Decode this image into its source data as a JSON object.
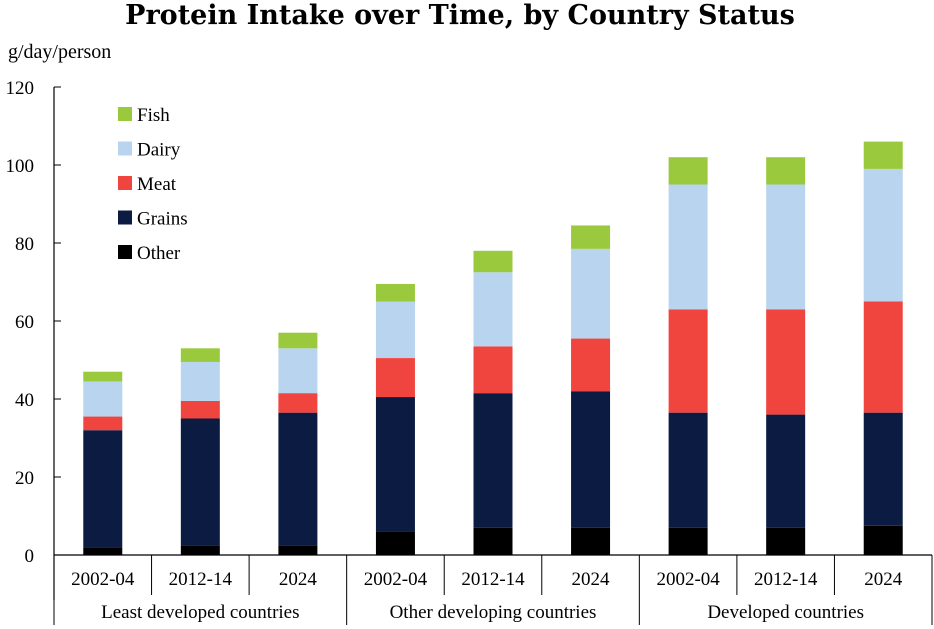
{
  "chart_data": {
    "type": "bar",
    "stacked": true,
    "title": "Protein Intake over Time, by Country Status",
    "ylabel": "g/day/person",
    "ylim": [
      0,
      120
    ],
    "yticks": [
      0,
      20,
      40,
      60,
      80,
      100,
      120
    ],
    "groups": [
      {
        "label": "Least developed countries",
        "categories": [
          "2002-04",
          "2012-14",
          "2024"
        ]
      },
      {
        "label": "Other developing countries",
        "categories": [
          "2002-04",
          "2012-14",
          "2024"
        ]
      },
      {
        "label": "Developed countries",
        "categories": [
          "2002-04",
          "2012-14",
          "2024"
        ]
      }
    ],
    "categories": [
      "2002-04",
      "2012-14",
      "2024",
      "2002-04",
      "2012-14",
      "2024",
      "2002-04",
      "2012-14",
      "2024"
    ],
    "series": [
      {
        "name": "Other",
        "color": "#000000",
        "values": [
          2,
          2.5,
          2.5,
          6,
          7,
          7,
          7,
          7,
          7.5
        ]
      },
      {
        "name": "Grains",
        "color": "#0c1b42",
        "values": [
          30,
          32.5,
          34,
          34.5,
          34.5,
          35,
          29.5,
          29,
          29
        ]
      },
      {
        "name": "Meat",
        "color": "#f0443f",
        "values": [
          3.5,
          4.5,
          5,
          10,
          12,
          13.5,
          26.5,
          27,
          28.5
        ]
      },
      {
        "name": "Dairy",
        "color": "#b8d4ee",
        "values": [
          9,
          10,
          11.5,
          14.5,
          19,
          23,
          32,
          32,
          34
        ]
      },
      {
        "name": "Fish",
        "color": "#9ac93d",
        "values": [
          2.5,
          3.5,
          4,
          4.5,
          5.5,
          6,
          7,
          7,
          7
        ]
      }
    ],
    "legend": {
      "position": "top-left",
      "order": [
        "Fish",
        "Dairy",
        "Meat",
        "Grains",
        "Other"
      ]
    },
    "grid": false
  }
}
